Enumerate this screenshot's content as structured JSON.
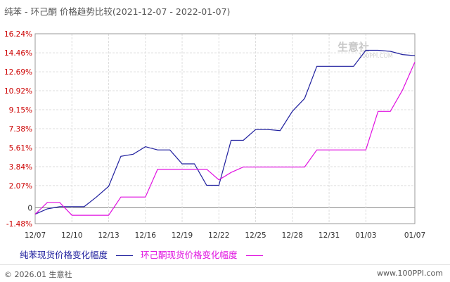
{
  "title": "纯苯 - 环己酮 价格趋势比较(2021-12-07 - 2022-01-07)",
  "watermark": {
    "text": "生意社",
    "sub": "100PPI.COM"
  },
  "footer": {
    "copyright": "© 2026.01 生意社",
    "url": "www.100PPI.com"
  },
  "colors": {
    "series1": "#1f1f9e",
    "series2": "#e010e0",
    "ytick": "#cc0000",
    "grid": "#dddddd",
    "zero": "#888888"
  },
  "chart_data": {
    "type": "line",
    "title": "纯苯 - 环己酮 价格趋势比较(2021-12-07 - 2022-01-07)",
    "xlabel": "",
    "ylabel": "",
    "ylim": [
      -1.48,
      16.24
    ],
    "yticks": [
      "16.24%",
      "14.46%",
      "12.69%",
      "10.92%",
      "9.15%",
      "7.38%",
      "5.61%",
      "3.84%",
      "2.07%",
      "0",
      "-1.48%"
    ],
    "ytick_values": [
      16.24,
      14.46,
      12.69,
      10.92,
      9.15,
      7.38,
      5.61,
      3.84,
      2.07,
      0,
      -1.48
    ],
    "xticks": [
      "12/07",
      "12/10",
      "12/13",
      "12/16",
      "12/19",
      "12/22",
      "12/25",
      "12/28",
      "12/31",
      "01/03",
      "01/07"
    ],
    "xlim": [
      "2021-12-07",
      "2022-01-07"
    ],
    "legend_position": "bottom",
    "grid": true,
    "series": [
      {
        "name": "纯苯现货价格变化幅度",
        "color": "#1f1f9e",
        "points": [
          [
            "2021-12-07",
            -0.6
          ],
          [
            "2021-12-08",
            -0.1
          ],
          [
            "2021-12-09",
            0.1
          ],
          [
            "2021-12-10",
            0.1
          ],
          [
            "2021-12-11",
            0.1
          ],
          [
            "2021-12-12",
            1.0
          ],
          [
            "2021-12-13",
            2.0
          ],
          [
            "2021-12-14",
            4.8
          ],
          [
            "2021-12-15",
            5.0
          ],
          [
            "2021-12-16",
            5.7
          ],
          [
            "2021-12-17",
            5.4
          ],
          [
            "2021-12-18",
            5.4
          ],
          [
            "2021-12-19",
            4.1
          ],
          [
            "2021-12-20",
            4.1
          ],
          [
            "2021-12-21",
            2.1
          ],
          [
            "2021-12-22",
            2.1
          ],
          [
            "2021-12-23",
            6.3
          ],
          [
            "2021-12-24",
            6.3
          ],
          [
            "2021-12-25",
            7.3
          ],
          [
            "2021-12-26",
            7.3
          ],
          [
            "2021-12-27",
            7.2
          ],
          [
            "2021-12-28",
            9.0
          ],
          [
            "2021-12-29",
            10.2
          ],
          [
            "2021-12-30",
            13.2
          ],
          [
            "2021-12-31",
            13.2
          ],
          [
            "2022-01-01",
            13.2
          ],
          [
            "2022-01-02",
            13.2
          ],
          [
            "2022-01-03",
            14.7
          ],
          [
            "2022-01-04",
            14.7
          ],
          [
            "2022-01-05",
            14.6
          ],
          [
            "2022-01-06",
            14.3
          ],
          [
            "2022-01-07",
            14.2
          ]
        ]
      },
      {
        "name": "环己酮现货价格变化幅度",
        "color": "#e010e0",
        "points": [
          [
            "2021-12-07",
            -0.6
          ],
          [
            "2021-12-08",
            0.5
          ],
          [
            "2021-12-09",
            0.5
          ],
          [
            "2021-12-10",
            -0.7
          ],
          [
            "2021-12-11",
            -0.7
          ],
          [
            "2021-12-12",
            -0.7
          ],
          [
            "2021-12-13",
            -0.7
          ],
          [
            "2021-12-14",
            1.0
          ],
          [
            "2021-12-15",
            1.0
          ],
          [
            "2021-12-16",
            1.0
          ],
          [
            "2021-12-17",
            3.6
          ],
          [
            "2021-12-18",
            3.6
          ],
          [
            "2021-12-19",
            3.6
          ],
          [
            "2021-12-20",
            3.6
          ],
          [
            "2021-12-21",
            3.6
          ],
          [
            "2021-12-22",
            2.6
          ],
          [
            "2021-12-23",
            3.3
          ],
          [
            "2021-12-24",
            3.8
          ],
          [
            "2021-12-25",
            3.8
          ],
          [
            "2021-12-26",
            3.8
          ],
          [
            "2021-12-27",
            3.8
          ],
          [
            "2021-12-28",
            3.8
          ],
          [
            "2021-12-29",
            3.8
          ],
          [
            "2021-12-30",
            5.4
          ],
          [
            "2021-12-31",
            5.4
          ],
          [
            "2022-01-01",
            5.4
          ],
          [
            "2022-01-02",
            5.4
          ],
          [
            "2022-01-03",
            5.4
          ],
          [
            "2022-01-04",
            9.0
          ],
          [
            "2022-01-05",
            9.0
          ],
          [
            "2022-01-06",
            11.0
          ],
          [
            "2022-01-07",
            13.6
          ]
        ]
      }
    ]
  }
}
